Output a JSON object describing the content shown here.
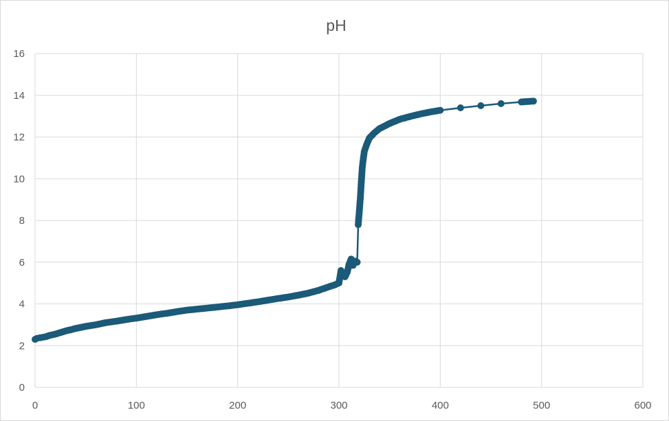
{
  "chart_data": {
    "type": "scatter",
    "title": "pH",
    "xlabel": "",
    "ylabel": "",
    "xlim": [
      0,
      600
    ],
    "ylim": [
      0,
      16
    ],
    "x_ticks": [
      "0",
      "100",
      "200",
      "300",
      "400",
      "500",
      "600"
    ],
    "y_ticks": [
      "0",
      "2",
      "4",
      "6",
      "8",
      "10",
      "12",
      "14",
      "16"
    ],
    "grid": true,
    "legend": "none",
    "marker": "circle",
    "connect_points": true,
    "series_color": "#1b5a78",
    "x": [
      0,
      2,
      5,
      10,
      15,
      20,
      30,
      40,
      50,
      60,
      70,
      80,
      90,
      100,
      110,
      120,
      130,
      140,
      150,
      160,
      170,
      180,
      190,
      200,
      210,
      220,
      230,
      240,
      250,
      260,
      270,
      280,
      290,
      295,
      300,
      302,
      304,
      306,
      308,
      310,
      312,
      314,
      316,
      318,
      319,
      320,
      321,
      322,
      323,
      324,
      325,
      327,
      330,
      335,
      340,
      350,
      360,
      370,
      380,
      390,
      400,
      420,
      440,
      460,
      480,
      492
    ],
    "y": [
      2.3,
      2.35,
      2.38,
      2.42,
      2.5,
      2.55,
      2.7,
      2.82,
      2.92,
      3.0,
      3.1,
      3.17,
      3.25,
      3.32,
      3.4,
      3.48,
      3.55,
      3.63,
      3.7,
      3.75,
      3.8,
      3.85,
      3.9,
      3.96,
      4.03,
      4.1,
      4.18,
      4.26,
      4.33,
      4.42,
      4.52,
      4.65,
      4.82,
      4.9,
      5.0,
      5.6,
      5.35,
      5.3,
      5.5,
      5.9,
      6.15,
      5.85,
      6.05,
      6.0,
      7.8,
      8.4,
      9.0,
      9.8,
      10.55,
      10.95,
      11.3,
      11.6,
      11.95,
      12.2,
      12.4,
      12.65,
      12.85,
      12.98,
      13.1,
      13.2,
      13.28,
      13.4,
      13.5,
      13.6,
      13.68,
      13.72
    ]
  }
}
